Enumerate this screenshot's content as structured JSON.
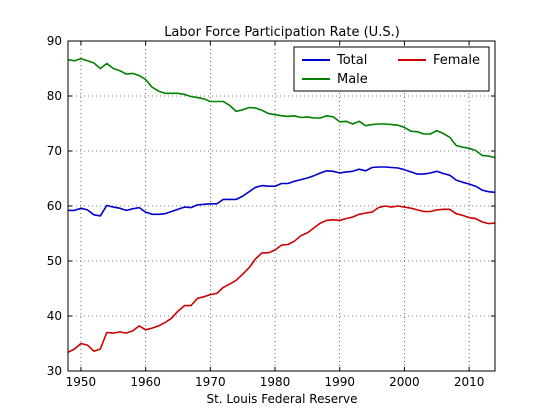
{
  "chart_data": {
    "type": "line",
    "title": "Labor Force Participation Rate (U.S.)",
    "xlabel": "St. Louis Federal Reserve",
    "ylabel": "",
    "xlim": [
      1948,
      2014
    ],
    "ylim": [
      30,
      90
    ],
    "xticks": [
      1950,
      1960,
      1970,
      1980,
      1990,
      2000,
      2010
    ],
    "yticks": [
      30,
      40,
      50,
      60,
      70,
      80,
      90
    ],
    "grid": true,
    "legend": "upper-right",
    "x": [
      1948,
      1949,
      1950,
      1951,
      1952,
      1953,
      1954,
      1955,
      1956,
      1957,
      1958,
      1959,
      1960,
      1961,
      1962,
      1963,
      1964,
      1965,
      1966,
      1967,
      1968,
      1969,
      1970,
      1971,
      1972,
      1973,
      1974,
      1975,
      1976,
      1977,
      1978,
      1979,
      1980,
      1981,
      1982,
      1983,
      1984,
      1985,
      1986,
      1987,
      1988,
      1989,
      1990,
      1991,
      1992,
      1993,
      1994,
      1995,
      1996,
      1997,
      1998,
      1999,
      2000,
      2001,
      2002,
      2003,
      2004,
      2005,
      2006,
      2007,
      2008,
      2009,
      2010,
      2011,
      2012,
      2013,
      2014
    ],
    "series": [
      {
        "name": "Total",
        "color": "#0000cc",
        "values": [
          59.2,
          59.2,
          59.6,
          59.3,
          58.4,
          58.2,
          60.1,
          59.8,
          59.6,
          59.2,
          59.5,
          59.7,
          58.9,
          58.5,
          58.5,
          58.6,
          59.0,
          59.4,
          59.8,
          59.7,
          60.2,
          60.3,
          60.4,
          60.4,
          61.2,
          61.2,
          61.2,
          61.8,
          62.6,
          63.4,
          63.7,
          63.6,
          63.6,
          64.1,
          64.1,
          64.5,
          64.8,
          65.1,
          65.5,
          66.0,
          66.4,
          66.3,
          66.0,
          66.2,
          66.3,
          66.7,
          66.4,
          67.0,
          67.1,
          67.1,
          67.0,
          66.9,
          66.6,
          66.2,
          65.8,
          65.8,
          66.0,
          66.3,
          65.9,
          65.6,
          64.7,
          64.3,
          64.0,
          63.6,
          62.9,
          62.6,
          62.5
        ]
      },
      {
        "name": "Male",
        "color": "#008000",
        "values": [
          86.6,
          86.4,
          86.8,
          86.4,
          86.0,
          85.0,
          85.9,
          85.0,
          84.6,
          84.0,
          84.1,
          83.7,
          83.0,
          81.6,
          80.9,
          80.5,
          80.5,
          80.5,
          80.3,
          79.9,
          79.7,
          79.5,
          79.0,
          79.0,
          79.0,
          78.3,
          77.2,
          77.5,
          77.9,
          77.8,
          77.4,
          76.8,
          76.6,
          76.4,
          76.3,
          76.4,
          76.1,
          76.2,
          76.0,
          76.0,
          76.4,
          76.2,
          75.3,
          75.4,
          74.9,
          75.4,
          74.6,
          74.8,
          74.9,
          74.9,
          74.8,
          74.7,
          74.3,
          73.6,
          73.5,
          73.1,
          73.1,
          73.7,
          73.2,
          72.5,
          71.0,
          70.7,
          70.5,
          70.1,
          69.2,
          69.1,
          68.8
        ]
      },
      {
        "name": "Female",
        "color": "#cc0000",
        "values": [
          33.4,
          34.0,
          35.0,
          34.7,
          33.6,
          34.0,
          37.0,
          36.9,
          37.1,
          36.9,
          37.3,
          38.2,
          37.5,
          37.8,
          38.2,
          38.8,
          39.6,
          40.9,
          41.9,
          41.9,
          43.2,
          43.5,
          43.9,
          44.1,
          45.2,
          45.8,
          46.5,
          47.6,
          48.8,
          50.4,
          51.5,
          51.5,
          52.0,
          52.9,
          53.0,
          53.6,
          54.6,
          55.1,
          56.0,
          56.9,
          57.4,
          57.5,
          57.4,
          57.7,
          58.0,
          58.5,
          58.7,
          58.9,
          59.7,
          60.0,
          59.8,
          60.0,
          59.8,
          59.6,
          59.3,
          59.0,
          59.0,
          59.3,
          59.4,
          59.4,
          58.6,
          58.3,
          57.9,
          57.7,
          57.1,
          56.8,
          56.9
        ]
      }
    ]
  }
}
